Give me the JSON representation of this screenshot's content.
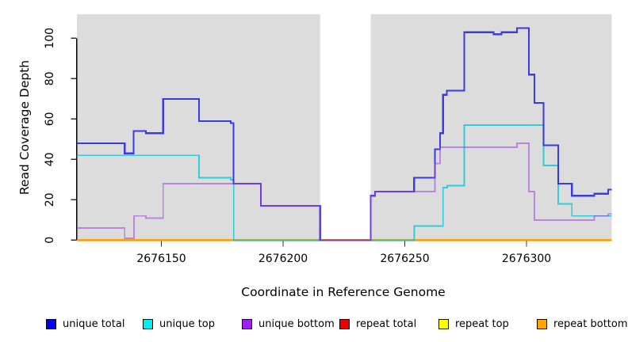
{
  "chart_data": {
    "type": "line",
    "subtype": "step-coverage",
    "title": "",
    "xlabel": "Coordinate in Reference Genome",
    "ylabel": "Read Coverage Depth",
    "x_range": [
      2676115.3,
      2676335.0
    ],
    "y_axis_range": [
      0,
      100
    ],
    "x_ticks": [
      2676150,
      2676200,
      2676250,
      2676300
    ],
    "y_ticks": [
      0,
      20,
      40,
      60,
      80,
      100
    ],
    "grid": false,
    "plot_background": "#ffffff",
    "shaded_band_color": "#DCDCDC",
    "shaded_regions": [
      [
        2676115.3,
        2676215.2
      ],
      [
        2676236.0,
        2676335.0
      ]
    ],
    "unshaded_gap": [
      2676215.2,
      2676236.0
    ],
    "axis_color": "#000000",
    "tick_color": "#333333",
    "series": [
      {
        "name": "unique total",
        "legend_color": "#0000EE",
        "line_color": "rgba(45,45,225,0.92)",
        "line_width": 2.1,
        "steps": [
          [
            2676115.3,
            48
          ],
          [
            2676134.9,
            43
          ],
          [
            2676138.6,
            54
          ],
          [
            2676143.6,
            53
          ],
          [
            2676150.7,
            70
          ],
          [
            2676165.5,
            59
          ],
          [
            2676178.5,
            58
          ],
          [
            2676179.6,
            28
          ],
          [
            2676190.8,
            17
          ],
          [
            2676215.2,
            0
          ],
          [
            2676236.0,
            22
          ],
          [
            2676237.8,
            24
          ],
          [
            2676253.8,
            31
          ],
          [
            2676262.3,
            45
          ],
          [
            2676264.4,
            53
          ],
          [
            2676265.7,
            72
          ],
          [
            2676267.2,
            74
          ],
          [
            2676274.4,
            103
          ],
          [
            2676286.4,
            102
          ],
          [
            2676289.7,
            103
          ],
          [
            2676296.0,
            105
          ],
          [
            2676301.0,
            82
          ],
          [
            2676303.2,
            68
          ],
          [
            2676307.0,
            47
          ],
          [
            2676313.0,
            28
          ],
          [
            2676318.6,
            22
          ],
          [
            2676327.8,
            23
          ],
          [
            2676333.5,
            25
          ]
        ]
      },
      {
        "name": "unique top",
        "legend_color": "#00EEEE",
        "line_color": "rgba(0,200,214,0.78)",
        "line_width": 1.9,
        "steps": [
          [
            2676115.3,
            42
          ],
          [
            2676165.5,
            31
          ],
          [
            2676178.5,
            30
          ],
          [
            2676179.7,
            0
          ],
          [
            2676253.9,
            7
          ],
          [
            2676265.7,
            26
          ],
          [
            2676267.4,
            27
          ],
          [
            2676274.4,
            57
          ],
          [
            2676307.0,
            37
          ],
          [
            2676313.0,
            18
          ],
          [
            2676318.6,
            12
          ]
        ]
      },
      {
        "name": "unique bottom",
        "legend_color": "#A020F0",
        "line_color": "rgba(158,62,222,0.55)",
        "line_width": 1.9,
        "steps": [
          [
            2676115.3,
            6
          ],
          [
            2676134.9,
            1
          ],
          [
            2676138.7,
            12
          ],
          [
            2676143.6,
            11
          ],
          [
            2676150.7,
            28
          ],
          [
            2676190.8,
            17
          ],
          [
            2676215.2,
            0
          ],
          [
            2676236.0,
            22
          ],
          [
            2676237.8,
            24
          ],
          [
            2676262.3,
            38
          ],
          [
            2676264.4,
            46
          ],
          [
            2676296.0,
            48
          ],
          [
            2676301.0,
            24
          ],
          [
            2676303.2,
            10
          ],
          [
            2676327.8,
            12
          ],
          [
            2676333.5,
            13
          ]
        ]
      },
      {
        "name": "repeat total",
        "legend_color": "#EE0000",
        "line_color": "#EE0000",
        "line_width": 1.8,
        "steps": [
          [
            2676115.3,
            0
          ]
        ]
      },
      {
        "name": "repeat top",
        "legend_color": "#FFFF00",
        "line_color": "#FFFF00",
        "line_width": 1.8,
        "steps": [
          [
            2676115.3,
            0
          ]
        ]
      },
      {
        "name": "repeat bottom",
        "legend_color": "#FFA500",
        "line_color": "#FFA000",
        "line_width": 2.2,
        "steps": [
          [
            2676115.3,
            0
          ]
        ]
      }
    ],
    "draw_order": [
      "repeat total",
      "repeat top",
      "repeat bottom",
      "unique top",
      "unique total",
      "unique bottom"
    ],
    "legend_position": "bottom"
  },
  "legend": {
    "items": [
      {
        "label": "unique total",
        "color": "#0000EE"
      },
      {
        "label": "unique top",
        "color": "#00EEEE"
      },
      {
        "label": "unique bottom",
        "color": "#A020F0"
      },
      {
        "label": "repeat total",
        "color": "#EE0000"
      },
      {
        "label": "repeat top",
        "color": "#FFFF00"
      },
      {
        "label": "repeat bottom",
        "color": "#FFA500"
      }
    ]
  }
}
